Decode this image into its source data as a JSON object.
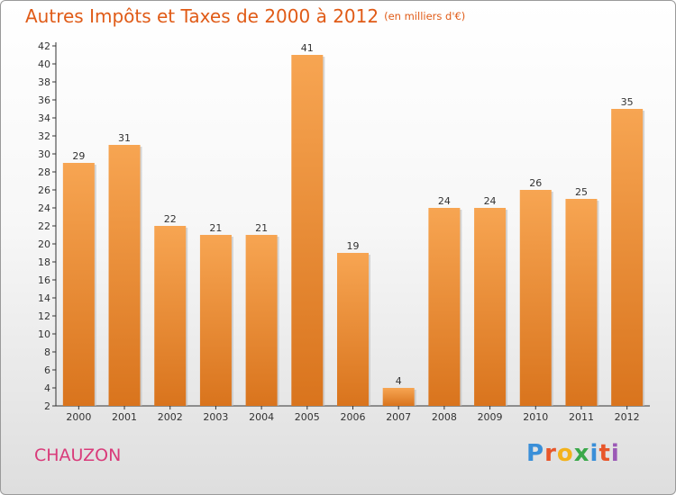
{
  "header": {
    "title": "Autres Impôts et Taxes de 2000 à 2012",
    "unit": "(en milliers d'€)"
  },
  "footer": {
    "commune": "CHAUZON",
    "brand": "Proxiti"
  },
  "colors": {
    "bar_top": "#f7a552",
    "bar_bottom": "#d9741d",
    "title": "#e05b17",
    "commune": "#d93b7a"
  },
  "chart_data": {
    "type": "bar",
    "title": "Autres Impôts et Taxes de 2000 à 2012",
    "subtitle": "(en milliers d'€)",
    "categories": [
      "2000",
      "2001",
      "2002",
      "2003",
      "2004",
      "2005",
      "2006",
      "2007",
      "2008",
      "2009",
      "2010",
      "2011",
      "2012"
    ],
    "values": [
      29,
      31,
      22,
      21,
      21,
      41,
      19,
      4,
      24,
      24,
      26,
      25,
      35
    ],
    "ylim": [
      2,
      42
    ],
    "yticks": [
      2,
      4,
      6,
      8,
      10,
      12,
      14,
      16,
      18,
      20,
      22,
      24,
      26,
      28,
      30,
      32,
      34,
      36,
      38,
      40,
      42
    ],
    "grid": false,
    "data_labels": true
  }
}
